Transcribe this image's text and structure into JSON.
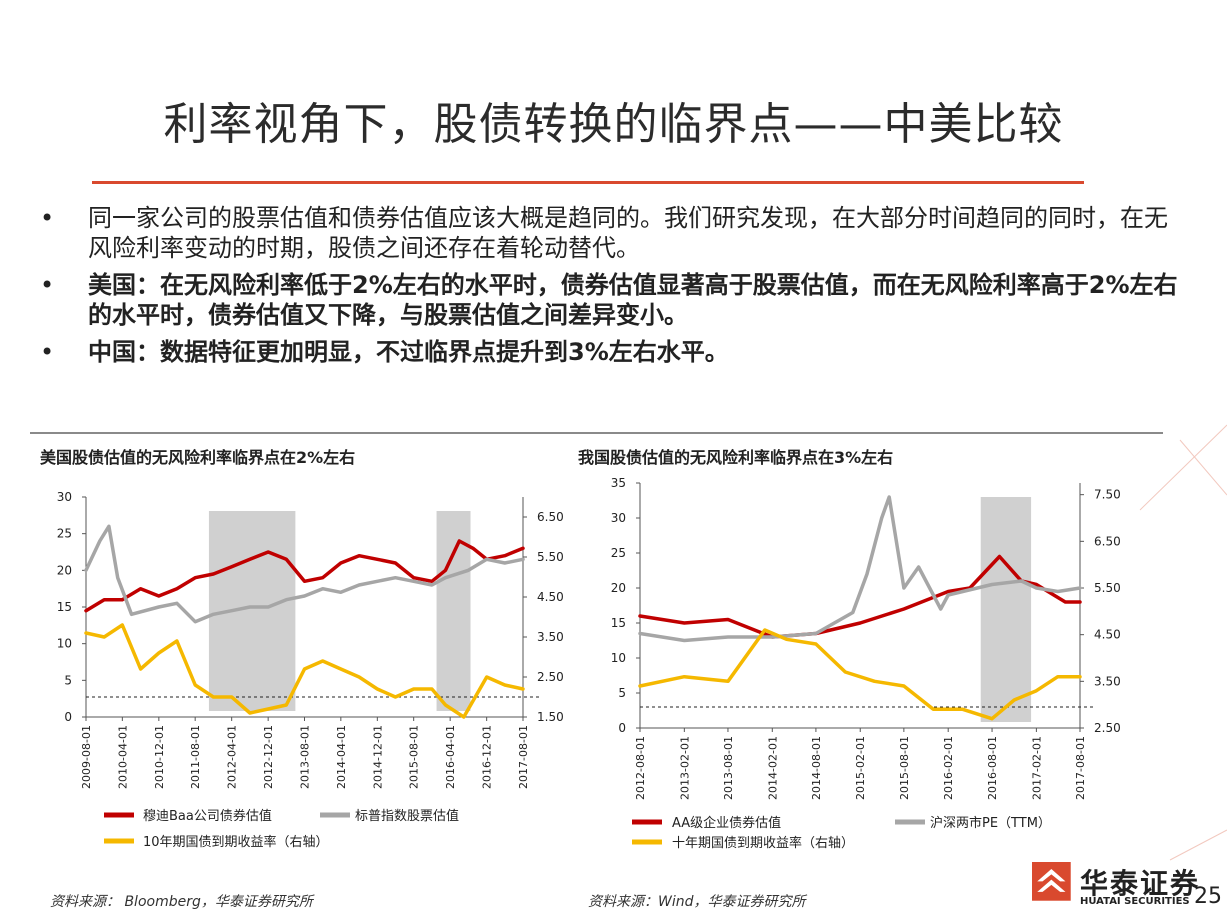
{
  "slide": {
    "title": "利率视角下，股债转换的临界点——中美比较",
    "bullets": [
      {
        "marker": "•",
        "prefix": "",
        "text": "同一家公司的股票估值和债券估值应该大概是趋同的。我们研究发现，在大部分时间趋同的同时，在无风险利率变动的时期，股债之间还存在着轮动替代。"
      },
      {
        "marker": "•",
        "prefix": "美国：",
        "text": "在无风险利率低于2%左右的水平时，债券估值显著高于股票估值，而在无风险利率高于2%左右的水平时，债券估值又下降，与股票估值之间差异变小。"
      },
      {
        "marker": "•",
        "prefix": "中国：",
        "text": "数据特征更加明显，不过临界点提升到3%左右水平。"
      }
    ],
    "page_number": "25",
    "logo": {
      "name": "华泰证券",
      "sub": "HUATAI SECURITIES"
    }
  },
  "chart_data": [
    {
      "type": "line",
      "title": "美国股债估值的无风险利率临界点在2%左右",
      "source": "资料来源：  Bloomberg，华泰证券研究所",
      "x_ticks": [
        "2009-08-01",
        "2010-04-01",
        "2010-12-01",
        "2011-08-01",
        "2012-04-01",
        "2012-12-01",
        "2013-08-01",
        "2014-04-01",
        "2014-12-01",
        "2015-08-01",
        "2016-04-01",
        "2016-12-01",
        "2017-08-01"
      ],
      "xlim": [
        "2009-08-01",
        "2017-08-01"
      ],
      "y_left": {
        "ylim": [
          0,
          30
        ],
        "ticks": [
          0,
          5,
          10,
          15,
          20,
          25,
          30
        ]
      },
      "y_right": {
        "ylim": [
          1.5,
          7.0
        ],
        "ticks": [
          "1.50",
          "2.50",
          "3.50",
          "4.50",
          "5.50",
          "6.50"
        ]
      },
      "shaded_periods": [
        [
          "2011-11-01",
          "2013-06-01"
        ],
        [
          "2016-01-01",
          "2016-08-15"
        ]
      ],
      "reference_line": {
        "axis": "right",
        "value": 2.0
      },
      "series": [
        {
          "name": "穆迪Baa公司债券估值",
          "axis": "left",
          "color": "#c00000",
          "x": [
            "2009-08-01",
            "2009-12-01",
            "2010-04-01",
            "2010-08-01",
            "2010-12-01",
            "2011-04-01",
            "2011-08-01",
            "2011-12-01",
            "2012-04-01",
            "2012-08-01",
            "2012-12-01",
            "2013-04-01",
            "2013-08-01",
            "2013-12-01",
            "2014-04-01",
            "2014-08-01",
            "2014-12-01",
            "2015-04-01",
            "2015-08-01",
            "2015-12-01",
            "2016-03-01",
            "2016-06-01",
            "2016-09-01",
            "2016-12-01",
            "2017-04-01",
            "2017-08-01"
          ],
          "y": [
            14.5,
            16.0,
            16.0,
            17.5,
            16.5,
            17.5,
            19.0,
            19.5,
            20.5,
            21.5,
            22.5,
            21.5,
            18.5,
            19.0,
            21.0,
            22.0,
            21.5,
            21.0,
            19.0,
            18.5,
            20.0,
            24.0,
            23.0,
            21.5,
            22.0,
            23.0
          ]
        },
        {
          "name": "标普指数股票估值",
          "axis": "left",
          "color": "#a6a6a6",
          "x": [
            "2009-08-01",
            "2009-11-01",
            "2010-01-01",
            "2010-03-01",
            "2010-06-01",
            "2010-12-01",
            "2011-04-01",
            "2011-08-01",
            "2011-12-01",
            "2012-04-01",
            "2012-08-01",
            "2012-12-01",
            "2013-04-01",
            "2013-08-01",
            "2013-12-01",
            "2014-04-01",
            "2014-08-01",
            "2014-12-01",
            "2015-04-01",
            "2015-08-01",
            "2015-12-01",
            "2016-03-01",
            "2016-08-01",
            "2016-12-01",
            "2017-04-01",
            "2017-08-01"
          ],
          "y": [
            20.0,
            24.0,
            26.0,
            19.0,
            14.0,
            15.0,
            15.5,
            13.0,
            14.0,
            14.5,
            15.0,
            15.0,
            16.0,
            16.5,
            17.5,
            17.0,
            18.0,
            18.5,
            19.0,
            18.5,
            18.0,
            19.0,
            20.0,
            21.5,
            21.0,
            21.5
          ]
        },
        {
          "name": "10年期国债到期收益率（右轴）",
          "axis": "right",
          "color": "#f5b800",
          "x": [
            "2009-08-01",
            "2009-12-01",
            "2010-04-01",
            "2010-08-01",
            "2010-12-01",
            "2011-04-01",
            "2011-08-01",
            "2011-12-01",
            "2012-04-01",
            "2012-08-01",
            "2012-12-01",
            "2013-04-01",
            "2013-08-01",
            "2013-12-01",
            "2014-04-01",
            "2014-08-01",
            "2014-12-01",
            "2015-04-01",
            "2015-08-01",
            "2015-12-01",
            "2016-03-01",
            "2016-07-01",
            "2016-12-01",
            "2017-04-01",
            "2017-08-01"
          ],
          "y": [
            3.6,
            3.5,
            3.8,
            2.7,
            3.1,
            3.4,
            2.3,
            2.0,
            2.0,
            1.6,
            1.7,
            1.8,
            2.7,
            2.9,
            2.7,
            2.5,
            2.2,
            2.0,
            2.2,
            2.2,
            1.8,
            1.5,
            2.5,
            2.3,
            2.2
          ]
        }
      ]
    },
    {
      "type": "line",
      "title": "我国股债估值的无风险利率临界点在3%左右",
      "source": "资料来源：Wind，华泰证券研究所",
      "x_ticks": [
        "2012-08-01",
        "2013-02-01",
        "2013-08-01",
        "2014-02-01",
        "2014-08-01",
        "2015-02-01",
        "2015-08-01",
        "2016-02-01",
        "2016-08-01",
        "2017-02-01",
        "2017-08-01"
      ],
      "xlim": [
        "2012-08-01",
        "2017-08-01"
      ],
      "y_left": {
        "ylim": [
          0,
          35
        ],
        "ticks": [
          0,
          5,
          10,
          15,
          20,
          25,
          30,
          35
        ]
      },
      "y_right": {
        "ylim": [
          2.5,
          7.75
        ],
        "ticks": [
          "2.50",
          "3.50",
          "4.50",
          "5.50",
          "6.50",
          "7.50"
        ]
      },
      "shaded_periods": [
        [
          "2016-06-15",
          "2017-01-10"
        ]
      ],
      "reference_line": {
        "axis": "right",
        "value": 2.95
      },
      "series": [
        {
          "name": "AA级企业债券估值",
          "axis": "left",
          "color": "#c00000",
          "x": [
            "2012-08-01",
            "2013-02-01",
            "2013-08-01",
            "2014-02-01",
            "2014-08-01",
            "2015-02-01",
            "2015-08-01",
            "2016-02-01",
            "2016-05-01",
            "2016-09-01",
            "2016-12-01",
            "2017-02-01",
            "2017-06-01",
            "2017-08-01"
          ],
          "y": [
            16.0,
            15.0,
            15.5,
            13.0,
            13.5,
            15.0,
            17.0,
            19.5,
            20.0,
            24.5,
            21.0,
            20.5,
            18.0,
            18.0
          ]
        },
        {
          "name": "沪深两市PE（TTM）",
          "axis": "left",
          "color": "#a6a6a6",
          "x": [
            "2012-08-01",
            "2013-02-01",
            "2013-08-01",
            "2014-02-01",
            "2014-08-01",
            "2015-01-01",
            "2015-03-01",
            "2015-05-01",
            "2015-06-01",
            "2015-08-01",
            "2015-10-01",
            "2016-01-01",
            "2016-02-01",
            "2016-08-01",
            "2016-12-01",
            "2017-02-01",
            "2017-05-01",
            "2017-08-01"
          ],
          "y": [
            13.5,
            12.5,
            13.0,
            13.0,
            13.5,
            16.5,
            22.0,
            30.0,
            33.0,
            20.0,
            23.0,
            17.0,
            19.0,
            20.5,
            21.0,
            20.0,
            19.5,
            20.0
          ]
        },
        {
          "name": "十年期国债到期收益率（右轴）",
          "axis": "right",
          "color": "#f5b800",
          "x": [
            "2012-08-01",
            "2013-02-01",
            "2013-08-01",
            "2014-01-01",
            "2014-04-01",
            "2014-08-01",
            "2014-12-01",
            "2015-04-01",
            "2015-08-01",
            "2015-12-01",
            "2016-04-01",
            "2016-08-01",
            "2016-11-01",
            "2017-02-01",
            "2017-05-01",
            "2017-08-01"
          ],
          "y": [
            3.4,
            3.6,
            3.5,
            4.6,
            4.4,
            4.3,
            3.7,
            3.5,
            3.4,
            2.9,
            2.9,
            2.7,
            3.1,
            3.3,
            3.6,
            3.6
          ]
        }
      ]
    }
  ]
}
